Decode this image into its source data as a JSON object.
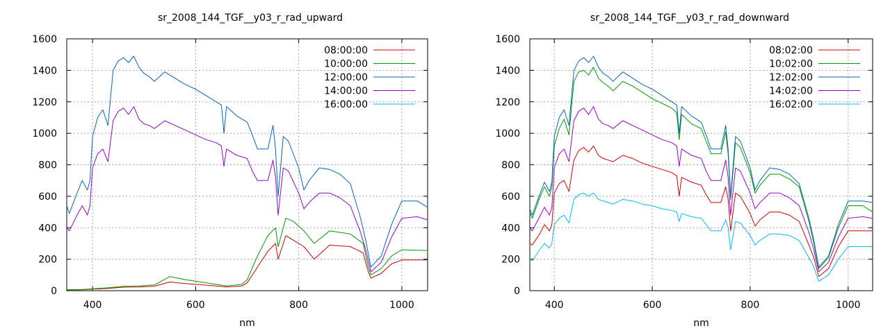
{
  "chart_data": [
    {
      "type": "line",
      "title": "sr_2008_144_TGF__y03_r_rad_upward",
      "xlabel": "nm",
      "ylabel": "",
      "xlim": [
        350,
        1050
      ],
      "ylim": [
        0,
        1600
      ],
      "xticks": [
        400,
        600,
        800,
        1000
      ],
      "yticks": [
        0,
        200,
        400,
        600,
        800,
        1000,
        1200,
        1400,
        1600
      ],
      "grid": true,
      "legend": "top-right",
      "series": [
        {
          "name": "08:00:00",
          "color": "#cc0000",
          "x": [
            350,
            380,
            400,
            430,
            460,
            490,
            520,
            550,
            580,
            610,
            640,
            660,
            690,
            700,
            720,
            740,
            755,
            760,
            775,
            790,
            810,
            830,
            860,
            900,
            925,
            935,
            940,
            960,
            980,
            1000,
            1050
          ],
          "y": [
            5,
            6,
            10,
            14,
            22,
            24,
            28,
            55,
            45,
            38,
            30,
            24,
            30,
            50,
            150,
            250,
            300,
            200,
            350,
            320,
            280,
            200,
            290,
            280,
            240,
            120,
            80,
            110,
            170,
            195,
            195
          ]
        },
        {
          "name": "10:00:00",
          "color": "#009900",
          "x": [
            350,
            380,
            400,
            430,
            460,
            490,
            520,
            550,
            580,
            610,
            640,
            660,
            690,
            700,
            720,
            740,
            755,
            760,
            775,
            790,
            810,
            830,
            860,
            900,
            925,
            935,
            940,
            960,
            980,
            1000,
            1050
          ],
          "y": [
            6,
            8,
            12,
            18,
            28,
            30,
            36,
            90,
            70,
            55,
            40,
            30,
            40,
            70,
            220,
            350,
            400,
            280,
            460,
            440,
            380,
            300,
            380,
            360,
            300,
            150,
            100,
            140,
            220,
            260,
            255
          ]
        },
        {
          "name": "12:00:00",
          "color": "#0066bb",
          "x": [
            350,
            355,
            370,
            380,
            390,
            395,
            400,
            410,
            420,
            430,
            440,
            450,
            460,
            470,
            480,
            490,
            500,
            510,
            520,
            540,
            560,
            580,
            600,
            620,
            640,
            650,
            655,
            660,
            680,
            700,
            710,
            720,
            740,
            750,
            755,
            760,
            770,
            780,
            800,
            810,
            820,
            840,
            860,
            880,
            900,
            920,
            930,
            940,
            960,
            980,
            1000,
            1030,
            1050
          ],
          "y": [
            540,
            490,
            620,
            700,
            640,
            700,
            980,
            1100,
            1150,
            1050,
            1400,
            1460,
            1480,
            1450,
            1490,
            1420,
            1380,
            1360,
            1330,
            1390,
            1350,
            1310,
            1280,
            1240,
            1200,
            1180,
            1000,
            1170,
            1110,
            1070,
            990,
            900,
            900,
            1050,
            900,
            600,
            980,
            950,
            780,
            640,
            700,
            780,
            770,
            740,
            680,
            460,
            320,
            150,
            220,
            420,
            570,
            570,
            530
          ]
        },
        {
          "name": "14:00:00",
          "color": "#9900cc",
          "x": [
            350,
            355,
            370,
            380,
            390,
            395,
            400,
            410,
            420,
            430,
            440,
            450,
            460,
            470,
            480,
            490,
            500,
            510,
            520,
            540,
            560,
            580,
            600,
            620,
            640,
            650,
            655,
            660,
            680,
            700,
            710,
            720,
            740,
            750,
            755,
            760,
            770,
            780,
            800,
            810,
            820,
            840,
            860,
            880,
            900,
            920,
            930,
            940,
            960,
            980,
            1000,
            1030,
            1050
          ],
          "y": [
            400,
            380,
            480,
            540,
            480,
            540,
            780,
            870,
            900,
            820,
            1080,
            1140,
            1160,
            1120,
            1170,
            1090,
            1060,
            1050,
            1030,
            1080,
            1050,
            1020,
            990,
            960,
            940,
            920,
            790,
            900,
            860,
            840,
            760,
            700,
            700,
            830,
            720,
            480,
            780,
            760,
            620,
            520,
            560,
            620,
            620,
            590,
            540,
            370,
            260,
            120,
            180,
            340,
            460,
            470,
            450
          ]
        },
        {
          "name": "16:00:00",
          "color": "#00bbee",
          "x": [],
          "y": []
        }
      ]
    },
    {
      "type": "line",
      "title": "sr_2008_144_TGF__y03_r_rad_downward",
      "xlabel": "nm",
      "ylabel": "",
      "xlim": [
        350,
        1050
      ],
      "ylim": [
        0,
        1600
      ],
      "xticks": [
        400,
        600,
        800,
        1000
      ],
      "yticks": [
        0,
        200,
        400,
        600,
        800,
        1000,
        1200,
        1400,
        1600
      ],
      "grid": true,
      "legend": "top-right",
      "series": [
        {
          "name": "08:02:00",
          "color": "#cc0000",
          "x": [
            350,
            355,
            370,
            380,
            390,
            395,
            400,
            410,
            420,
            430,
            440,
            450,
            460,
            470,
            480,
            490,
            500,
            510,
            520,
            540,
            560,
            580,
            600,
            620,
            640,
            650,
            655,
            660,
            680,
            700,
            710,
            720,
            740,
            750,
            755,
            760,
            770,
            780,
            800,
            810,
            820,
            840,
            860,
            880,
            900,
            920,
            930,
            940,
            960,
            980,
            1000,
            1030,
            1050
          ],
          "y": [
            300,
            290,
            360,
            420,
            380,
            420,
            620,
            680,
            700,
            630,
            830,
            890,
            910,
            880,
            920,
            860,
            840,
            830,
            820,
            860,
            840,
            810,
            790,
            770,
            750,
            730,
            600,
            720,
            690,
            670,
            610,
            560,
            560,
            660,
            580,
            380,
            620,
            600,
            490,
            410,
            450,
            500,
            500,
            480,
            440,
            290,
            210,
            90,
            140,
            280,
            380,
            380,
            380
          ]
        },
        {
          "name": "10:02:00",
          "color": "#009900",
          "x": [
            350,
            355,
            370,
            380,
            390,
            395,
            400,
            410,
            420,
            430,
            440,
            450,
            460,
            470,
            480,
            490,
            500,
            510,
            520,
            540,
            560,
            580,
            600,
            620,
            640,
            650,
            655,
            660,
            680,
            700,
            710,
            720,
            740,
            750,
            755,
            760,
            770,
            780,
            800,
            810,
            820,
            840,
            860,
            880,
            900,
            920,
            930,
            940,
            960,
            980,
            1000,
            1030,
            1050
          ],
          "y": [
            500,
            460,
            590,
            660,
            600,
            660,
            920,
            1030,
            1090,
            990,
            1330,
            1390,
            1400,
            1370,
            1420,
            1350,
            1320,
            1300,
            1270,
            1330,
            1300,
            1260,
            1220,
            1190,
            1160,
            1130,
            960,
            1120,
            1060,
            1030,
            950,
            870,
            870,
            1010,
            870,
            580,
            940,
            910,
            750,
            620,
            670,
            740,
            740,
            710,
            660,
            440,
            300,
            140,
            210,
            400,
            540,
            540,
            500
          ]
        },
        {
          "name": "12:02:00",
          "color": "#0066bb",
          "x": [
            350,
            355,
            370,
            380,
            390,
            395,
            400,
            410,
            420,
            430,
            440,
            450,
            460,
            470,
            480,
            490,
            500,
            510,
            520,
            540,
            560,
            580,
            600,
            620,
            640,
            650,
            655,
            660,
            680,
            700,
            710,
            720,
            740,
            750,
            755,
            760,
            770,
            780,
            800,
            810,
            820,
            840,
            860,
            880,
            900,
            920,
            930,
            940,
            960,
            980,
            1000,
            1030,
            1050
          ],
          "y": [
            520,
            480,
            610,
            690,
            630,
            690,
            980,
            1100,
            1150,
            1050,
            1400,
            1460,
            1480,
            1450,
            1490,
            1420,
            1380,
            1360,
            1330,
            1390,
            1350,
            1310,
            1280,
            1240,
            1200,
            1180,
            1000,
            1170,
            1110,
            1070,
            990,
            900,
            900,
            1050,
            900,
            600,
            980,
            950,
            780,
            640,
            700,
            780,
            770,
            740,
            680,
            460,
            320,
            150,
            220,
            420,
            570,
            570,
            560
          ]
        },
        {
          "name": "14:02:00",
          "color": "#9900cc",
          "x": [
            350,
            355,
            370,
            380,
            390,
            395,
            400,
            410,
            420,
            430,
            440,
            450,
            460,
            470,
            480,
            490,
            500,
            510,
            520,
            540,
            560,
            580,
            600,
            620,
            640,
            650,
            655,
            660,
            680,
            700,
            710,
            720,
            740,
            750,
            755,
            760,
            770,
            780,
            800,
            810,
            820,
            840,
            860,
            880,
            900,
            920,
            930,
            940,
            960,
            980,
            1000,
            1030,
            1050
          ],
          "y": [
            400,
            380,
            470,
            530,
            480,
            530,
            780,
            870,
            900,
            820,
            1080,
            1140,
            1160,
            1120,
            1170,
            1090,
            1060,
            1050,
            1030,
            1080,
            1050,
            1020,
            990,
            960,
            940,
            920,
            790,
            900,
            860,
            840,
            760,
            700,
            700,
            830,
            720,
            480,
            780,
            760,
            620,
            520,
            560,
            620,
            620,
            590,
            540,
            370,
            260,
            120,
            180,
            340,
            460,
            470,
            460
          ]
        },
        {
          "name": "16:02:00",
          "color": "#00bbee",
          "x": [
            350,
            355,
            370,
            380,
            390,
            395,
            400,
            410,
            420,
            430,
            440,
            450,
            460,
            470,
            480,
            490,
            500,
            510,
            520,
            540,
            560,
            580,
            600,
            620,
            640,
            650,
            655,
            660,
            680,
            700,
            710,
            720,
            740,
            750,
            755,
            760,
            770,
            780,
            800,
            810,
            820,
            840,
            860,
            880,
            900,
            920,
            930,
            940,
            960,
            980,
            1000,
            1030,
            1050
          ],
          "y": [
            200,
            190,
            260,
            300,
            270,
            300,
            420,
            460,
            480,
            430,
            580,
            610,
            620,
            600,
            620,
            580,
            570,
            560,
            550,
            580,
            570,
            550,
            540,
            520,
            510,
            500,
            440,
            490,
            470,
            460,
            420,
            380,
            380,
            450,
            400,
            260,
            440,
            430,
            350,
            290,
            320,
            360,
            360,
            350,
            320,
            210,
            150,
            60,
            100,
            200,
            280,
            280,
            280
          ]
        }
      ]
    }
  ]
}
